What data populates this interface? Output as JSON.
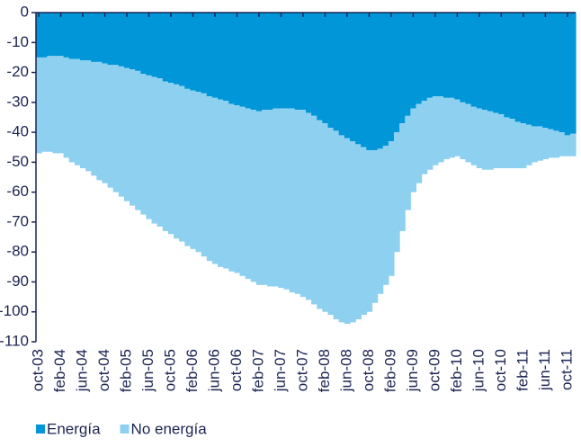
{
  "chart_data": {
    "type": "stacked_area",
    "categories": [
      "oct-03",
      null,
      null,
      null,
      "feb-04",
      null,
      null,
      null,
      "jun-04",
      null,
      null,
      null,
      "oct-04",
      null,
      null,
      null,
      "feb-05",
      null,
      null,
      null,
      "jun-05",
      null,
      null,
      null,
      "oct-05",
      null,
      null,
      null,
      "feb-06",
      null,
      null,
      null,
      "jun-06",
      null,
      null,
      null,
      "oct-06",
      null,
      null,
      null,
      "feb-07",
      null,
      null,
      null,
      "jun-07",
      null,
      null,
      null,
      "oct-07",
      null,
      null,
      null,
      "feb-08",
      null,
      null,
      null,
      "jun-08",
      null,
      null,
      null,
      "oct-08",
      null,
      null,
      null,
      "feb-09",
      null,
      null,
      null,
      "jun-09",
      null,
      null,
      null,
      "oct-09",
      null,
      null,
      null,
      "feb-10",
      null,
      null,
      null,
      "jun-10",
      null,
      null,
      null,
      "oct-10",
      null,
      null,
      null,
      "feb-11",
      null,
      null,
      null,
      "jun-11",
      null,
      null,
      null,
      "oct-11",
      null
    ],
    "series": [
      {
        "name": "Energía",
        "color": "#0096d8",
        "values": [
          -15,
          -15,
          -14.5,
          -14.5,
          -14.5,
          -15,
          -15.5,
          -15.5,
          -16,
          -16,
          -16.5,
          -16.5,
          -17,
          -17.5,
          -17.5,
          -18,
          -18.5,
          -19,
          -19.5,
          -20.5,
          -21,
          -21.5,
          -22,
          -23,
          -23.5,
          -24,
          -24.5,
          -25.5,
          -26,
          -26.5,
          -27,
          -28,
          -28.5,
          -29,
          -29.5,
          -30.5,
          -31,
          -31.5,
          -32,
          -32.5,
          -33,
          -32.5,
          -32.5,
          -32,
          -32,
          -32,
          -32,
          -32.5,
          -32.5,
          -33.5,
          -34.5,
          -36,
          -37,
          -38.5,
          -39.5,
          -41,
          -42,
          -43,
          -44,
          -45,
          -46,
          -46,
          -45.5,
          -44.5,
          -43,
          -40,
          -37,
          -34.5,
          -32,
          -30.5,
          -29.5,
          -28.5,
          -28,
          -28,
          -28.5,
          -28.5,
          -29,
          -30,
          -30.5,
          -31.5,
          -32,
          -32.5,
          -33,
          -33.5,
          -34,
          -35,
          -35.5,
          -36.5,
          -37,
          -37.5,
          -38,
          -38,
          -38.5,
          -39,
          -39.5,
          -40,
          -41,
          -40.5
        ]
      },
      {
        "name": "No energía",
        "color": "#8dd0f0",
        "values": [
          -32,
          -31.5,
          -32,
          -32.5,
          -32.5,
          -33.5,
          -34.5,
          -35.5,
          -36,
          -37,
          -38,
          -39.5,
          -40,
          -41,
          -42.5,
          -43.5,
          -44.5,
          -45.5,
          -46.5,
          -47,
          -48,
          -49,
          -49.5,
          -50,
          -50.5,
          -51.5,
          -52,
          -52.5,
          -53,
          -53.5,
          -54.5,
          -55,
          -55.5,
          -56,
          -56,
          -56,
          -56,
          -56.5,
          -57,
          -57.5,
          -58,
          -58.5,
          -59,
          -59.5,
          -60,
          -60.5,
          -61.5,
          -61.5,
          -62.5,
          -62.5,
          -63,
          -63,
          -63,
          -62.5,
          -63,
          -62.5,
          -62,
          -60.5,
          -58.5,
          -56,
          -54,
          -51,
          -48.5,
          -46.5,
          -45,
          -40,
          -36,
          -31.5,
          -28,
          -26.5,
          -24.5,
          -24,
          -23,
          -22,
          -20.5,
          -20,
          -19,
          -19,
          -19.5,
          -19.5,
          -20,
          -20,
          -19.5,
          -18.5,
          -18,
          -17,
          -16.5,
          -15.5,
          -15,
          -13.5,
          -12,
          -11.5,
          -10.5,
          -9.5,
          -9,
          -8,
          -7,
          -7.5
        ]
      }
    ],
    "ylim": [
      -110,
      0
    ],
    "yticks": [
      0,
      -10,
      -20,
      -30,
      -40,
      -50,
      -60,
      -70,
      -80,
      -90,
      -100,
      -110
    ]
  }
}
